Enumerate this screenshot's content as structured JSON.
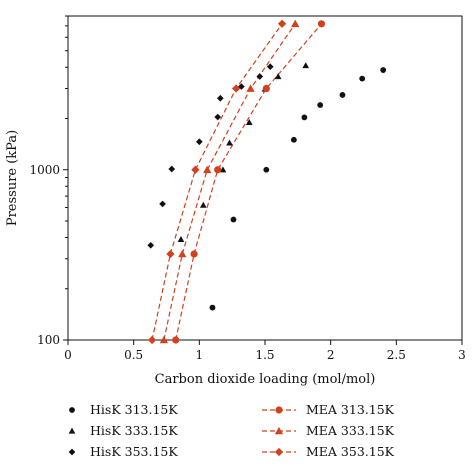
{
  "chart_data": {
    "type": "scatter",
    "title": "",
    "xlabel": "Carbon dioxide loading (mol/mol)",
    "ylabel": "Pressure (kPa)",
    "xlim": [
      0,
      3
    ],
    "ylim": [
      100,
      8000
    ],
    "yscale": "log",
    "x_ticks": [
      0,
      0.5,
      1,
      1.5,
      2,
      2.5,
      3
    ],
    "x_tick_labels": [
      "0",
      "0.5",
      "1",
      "1.5",
      "2",
      "2.5",
      "3"
    ],
    "y_ticks": [
      100,
      1000
    ],
    "y_tick_labels": [
      "100",
      "1000"
    ],
    "grid": false,
    "legend_position": "bottom",
    "series": [
      {
        "name": "HisK 313.15K",
        "marker": "circle",
        "color": "#111111",
        "line": false,
        "x": [
          1.1,
          1.26,
          1.51,
          1.72,
          1.8,
          1.92,
          2.09,
          2.24,
          2.4
        ],
        "y": [
          155,
          510,
          1000,
          1500,
          2030,
          2400,
          2750,
          3430,
          3850
        ]
      },
      {
        "name": "HisK 333.15K",
        "marker": "triangle",
        "color": "#111111",
        "line": false,
        "x": [
          0.86,
          1.03,
          1.18,
          1.23,
          1.38,
          1.5,
          1.6,
          1.81
        ],
        "y": [
          390,
          620,
          1000,
          1440,
          1900,
          2980,
          3530,
          4100
        ]
      },
      {
        "name": "HisK 353.15K",
        "marker": "diamond",
        "color": "#111111",
        "line": false,
        "x": [
          0.63,
          0.72,
          0.79,
          1.0,
          1.14,
          1.16,
          1.32,
          1.46,
          1.54
        ],
        "y": [
          360,
          630,
          1010,
          1460,
          2040,
          2630,
          3080,
          3530,
          4030
        ]
      },
      {
        "name": "MEA 313.15K",
        "marker": "circle",
        "color": "#d2401c",
        "line": true,
        "x": [
          0.82,
          0.96,
          1.14,
          1.51,
          1.93
        ],
        "y": [
          100,
          320,
          1000,
          3000,
          7200
        ]
      },
      {
        "name": "MEA 333.15K",
        "marker": "triangle",
        "color": "#d2401c",
        "line": true,
        "x": [
          0.73,
          0.87,
          1.06,
          1.39,
          1.73
        ],
        "y": [
          100,
          320,
          1000,
          3000,
          7200
        ]
      },
      {
        "name": "MEA 353.15K",
        "marker": "diamond",
        "color": "#d2401c",
        "line": true,
        "x": [
          0.64,
          0.78,
          0.97,
          1.28,
          1.63
        ],
        "y": [
          100,
          320,
          1000,
          3000,
          7200
        ]
      }
    ]
  }
}
